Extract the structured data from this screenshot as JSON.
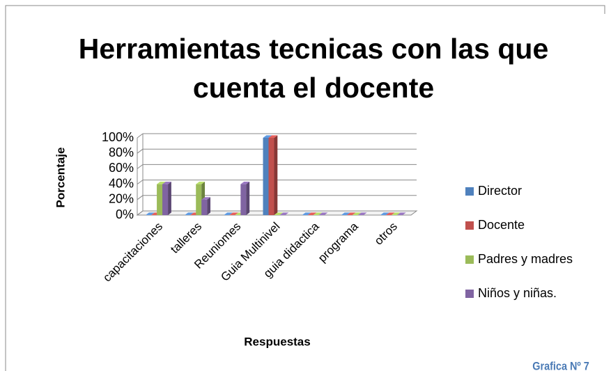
{
  "chart_data": {
    "type": "bar3d",
    "title": "Herramientas tecnicas con las que cuenta el docente",
    "x_label": "Respuestas",
    "y_label": "Porcentaje",
    "annotation": "Grafica Nº 7",
    "categories": [
      "capacitaciones",
      "talleres",
      "Reuniomes",
      "Guia Multinivel",
      "guia didactica",
      "programa",
      "otros"
    ],
    "series": [
      {
        "name": "Director",
        "color": "#4f81bd",
        "values": [
          0,
          0,
          0,
          100,
          0,
          0,
          0
        ]
      },
      {
        "name": "Docente",
        "color": "#c0504d",
        "values": [
          0,
          0,
          0,
          100,
          0,
          0,
          0
        ]
      },
      {
        "name": "Padres y madres",
        "color": "#9bbb59",
        "values": [
          40,
          40,
          0,
          0,
          0,
          0,
          0
        ]
      },
      {
        "name": "Niños y niñas.",
        "color": "#8064a2",
        "values": [
          40,
          20,
          40,
          0,
          0,
          0,
          0
        ]
      }
    ],
    "ylim": [
      0,
      100
    ],
    "yticks": [
      {
        "value": 0,
        "label": "0%"
      },
      {
        "value": 20,
        "label": "20%"
      },
      {
        "value": 40,
        "label": "40%"
      },
      {
        "value": 60,
        "label": "60%"
      },
      {
        "value": 80,
        "label": "80%"
      },
      {
        "value": 100,
        "label": "100%"
      }
    ],
    "grid": true,
    "legend": "right"
  }
}
